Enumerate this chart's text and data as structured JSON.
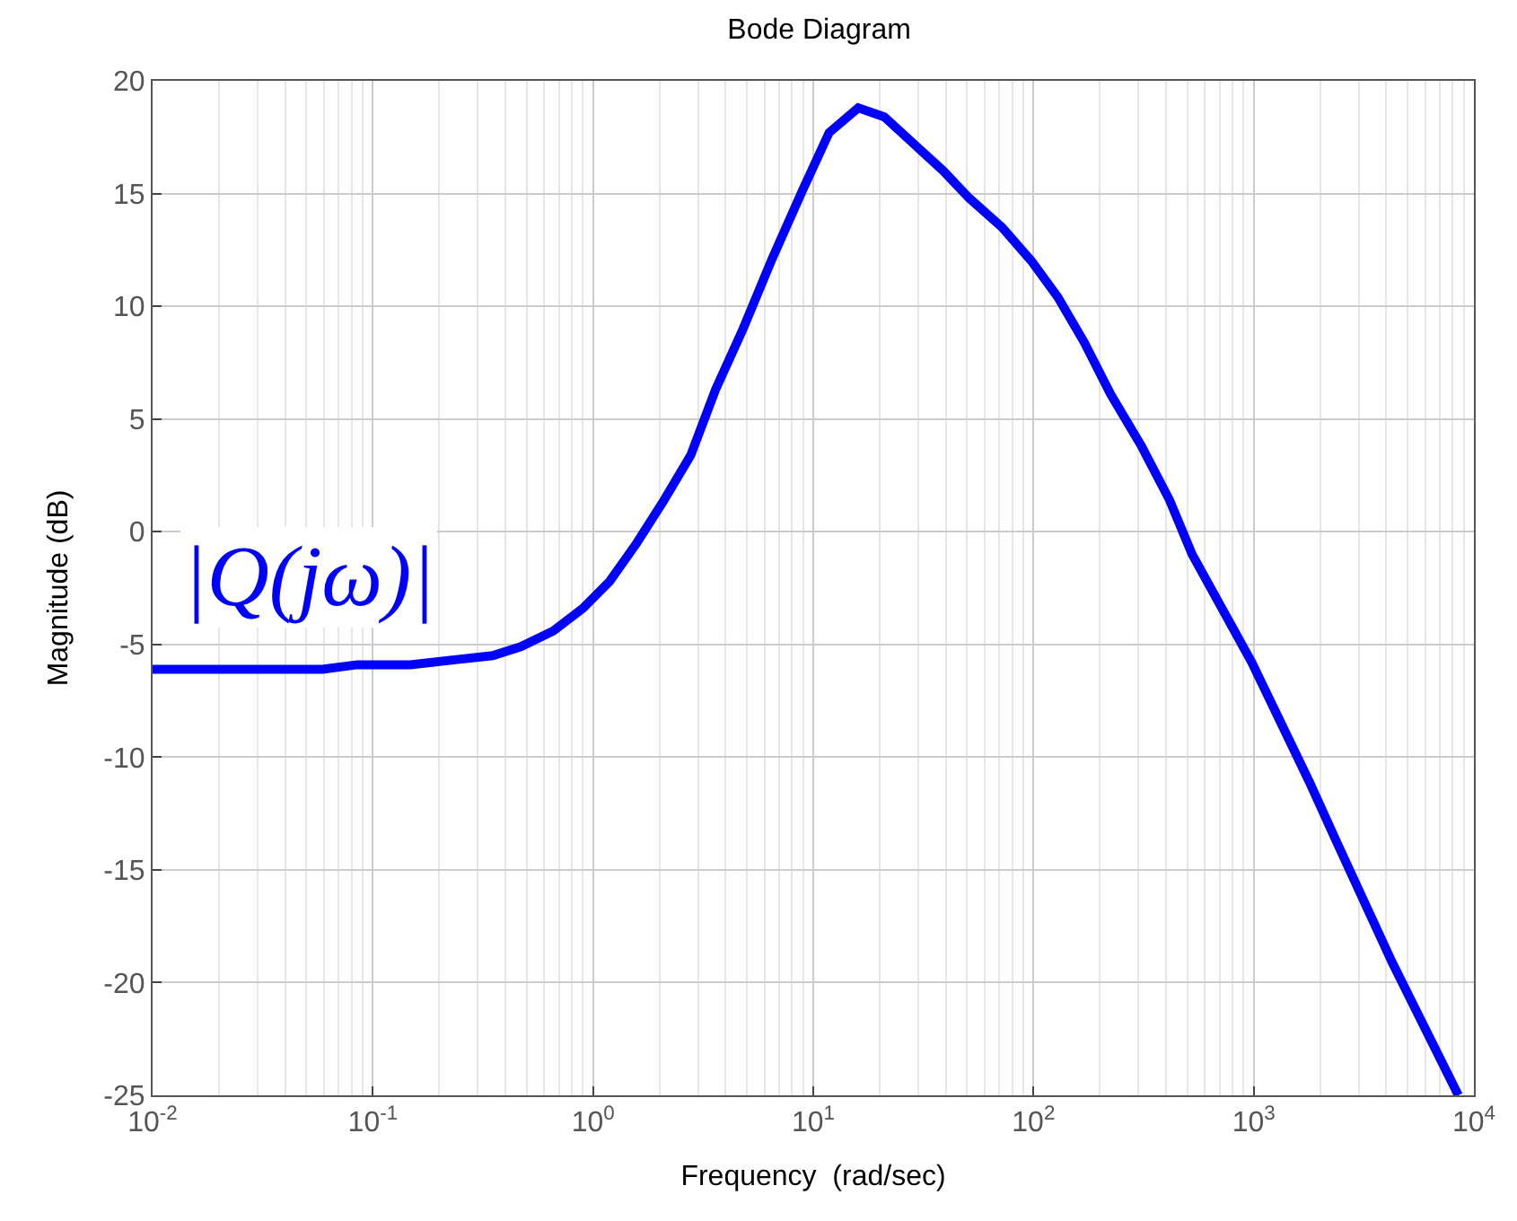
{
  "chart_data": {
    "type": "line",
    "title": "Bode Diagram",
    "xlabel": "Frequency  (rad/sec)",
    "ylabel": "Magnitude (dB)",
    "annotations": [
      "|Q(jω)|"
    ],
    "log": "x",
    "grid": true,
    "marker": "none",
    "line_style": "solid",
    "xlim": [
      0.01,
      10000
    ],
    "ylim": [
      -25,
      20
    ],
    "xticks": [
      {
        "value": 0.01,
        "label": "10$^{-2}$"
      },
      {
        "value": 0.1,
        "label": "10$^{-1}$"
      },
      {
        "value": 1,
        "label": "10$^{0}$"
      },
      {
        "value": 10,
        "label": "10$^{1}$"
      },
      {
        "value": 100,
        "label": "10$^{2}$"
      },
      {
        "value": 1000,
        "label": "10$^{3}$"
      },
      {
        "value": 10000,
        "label": "10$^{4}$"
      }
    ],
    "yticks": [
      -25,
      -20,
      -15,
      -10,
      -5,
      0,
      5,
      10,
      15,
      20
    ],
    "series": [
      {
        "color": "#0000ff",
        "x": [
          0.01,
          0.059,
          0.085,
          0.148,
          0.35,
          0.47,
          0.66,
          0.9,
          1.19,
          1.58,
          2.1,
          2.78,
          3.6,
          4.8,
          6.5,
          8.9,
          11.8,
          16,
          21,
          39,
          51,
          72,
          98,
          129,
          170,
          224,
          309,
          415,
          525,
          980,
          1790,
          2390,
          4250,
          8500
        ],
        "values": [
          -6.1,
          -6.1,
          -5.9,
          -5.9,
          -5.5,
          -5.1,
          -4.4,
          -3.4,
          -2.2,
          -0.5,
          1.4,
          3.4,
          6.3,
          9.0,
          12.1,
          15.1,
          17.7,
          18.8,
          18.4,
          16.0,
          14.8,
          13.5,
          12.0,
          10.4,
          8.4,
          6.1,
          3.8,
          1.4,
          -1.0,
          -5.8,
          -11.1,
          -13.8,
          -19.1,
          -25.0
        ]
      }
    ]
  }
}
